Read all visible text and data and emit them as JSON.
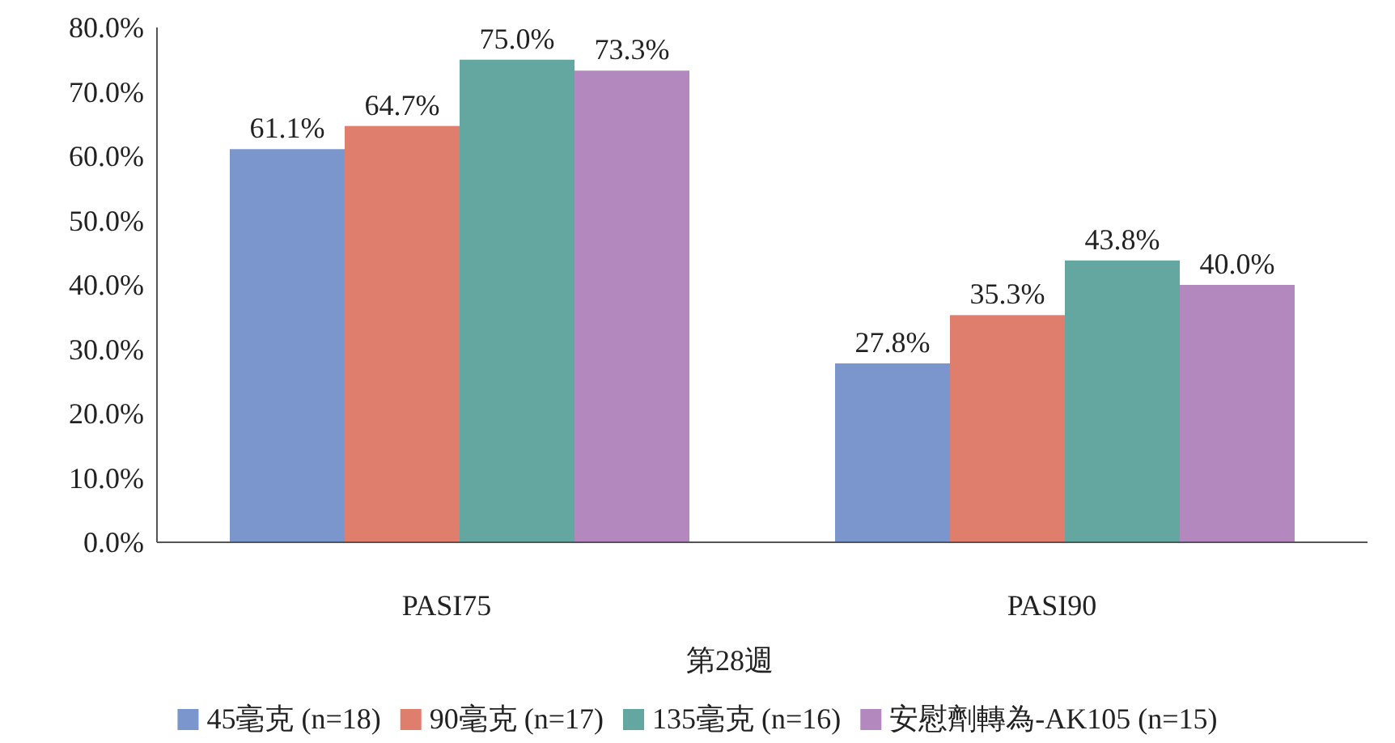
{
  "chart_data": {
    "type": "bar",
    "xlabel": "第28週",
    "categories": [
      "PASI75",
      "PASI90"
    ],
    "series": [
      {
        "name": "45毫克 (n=18)",
        "color": "#7b96cc",
        "values": [
          61.1,
          27.8
        ],
        "value_labels": [
          "61.1%",
          "27.8%"
        ]
      },
      {
        "name": "90毫克 (n=17)",
        "color": "#df7e6d",
        "values": [
          64.7,
          35.3
        ],
        "value_labels": [
          "64.7%",
          "35.3%"
        ]
      },
      {
        "name": "135毫克 (n=16)",
        "color": "#64a6a0",
        "values": [
          75.0,
          43.8
        ],
        "value_labels": [
          "75.0%",
          "43.8%"
        ]
      },
      {
        "name": "安慰劑轉為-AK105 (n=15)",
        "color": "#b388bf",
        "values": [
          73.3,
          40.0
        ],
        "value_labels": [
          "73.3%",
          "40.0%"
        ]
      }
    ],
    "ylim": [
      0,
      80
    ],
    "yticks": [
      {
        "value": 0,
        "label": "0.0%"
      },
      {
        "value": 10,
        "label": "10.0%"
      },
      {
        "value": 20,
        "label": "20.0%"
      },
      {
        "value": 30,
        "label": "30.0%"
      },
      {
        "value": 40,
        "label": "40.0%"
      },
      {
        "value": 50,
        "label": "50.0%"
      },
      {
        "value": 60,
        "label": "60.0%"
      },
      {
        "value": 70,
        "label": "70.0%"
      },
      {
        "value": 80,
        "label": "80.0%"
      }
    ],
    "grid": false,
    "legend": "bottom"
  }
}
